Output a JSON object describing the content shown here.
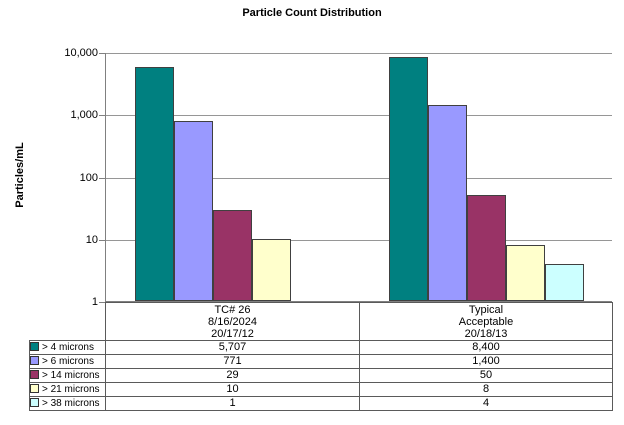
{
  "chart_data": {
    "type": "bar",
    "title": "Particle Count Distribution",
    "ylabel": "Particles/mL",
    "yscale": "log",
    "ylim": [
      1,
      10000
    ],
    "grid": true,
    "legend_position": "left-column-of-data-table",
    "yticks": [
      {
        "value": 10000,
        "label": "10,000"
      },
      {
        "value": 1000,
        "label": "1,000"
      },
      {
        "value": 100,
        "label": "100"
      },
      {
        "value": 10,
        "label": "10"
      },
      {
        "value": 1,
        "label": "1"
      }
    ],
    "categories": [
      {
        "lines": [
          "TC# 26",
          "8/16/2024",
          "20/17/12"
        ]
      },
      {
        "lines": [
          "Typical",
          "Acceptable",
          "20/18/13"
        ]
      }
    ],
    "series": [
      {
        "name": "> 4 microns",
        "color": "#008080",
        "values": [
          5707,
          8400
        ],
        "labels": [
          "5,707",
          "8,400"
        ]
      },
      {
        "name": "> 6 microns",
        "color": "#9999FF",
        "values": [
          771,
          1400
        ],
        "labels": [
          "771",
          "1,400"
        ]
      },
      {
        "name": "> 14 microns",
        "color": "#993366",
        "values": [
          29,
          50
        ],
        "labels": [
          "29",
          "50"
        ]
      },
      {
        "name": "> 21 microns",
        "color": "#FFFFCC",
        "values": [
          10,
          8
        ],
        "labels": [
          "10",
          "8"
        ]
      },
      {
        "name": "> 38 microns",
        "color": "#CCFFFF",
        "values": [
          1,
          4
        ],
        "labels": [
          "1",
          "4"
        ]
      }
    ]
  },
  "colors": {
    "background": "#FFFFFF",
    "gridline": "#969696",
    "axis": "#808080",
    "bar_border": "#404040",
    "table_border": "#5A5A5A",
    "text": "#000000"
  }
}
